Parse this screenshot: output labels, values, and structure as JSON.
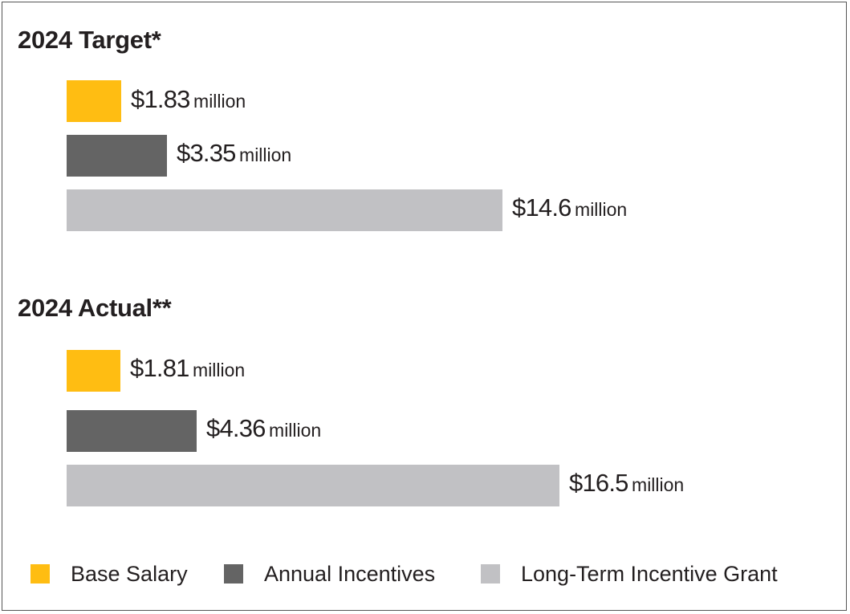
{
  "chart_data": {
    "type": "bar",
    "orientation": "horizontal",
    "unit_label": "million",
    "series_colors": {
      "Base Salary": "#ffbd12",
      "Annual Incentives": "#646464",
      "Long-Term Incentive Grant": "#c1c1c4"
    },
    "groups": [
      {
        "title": "2024 Target*",
        "bars": [
          {
            "series": "Base Salary",
            "value": 1.83,
            "label": "$1.83"
          },
          {
            "series": "Annual Incentives",
            "value": 3.35,
            "label": "$3.35"
          },
          {
            "series": "Long-Term Incentive Grant",
            "value": 14.6,
            "label": "$14.6"
          }
        ]
      },
      {
        "title": "2024 Actual**",
        "bars": [
          {
            "series": "Base Salary",
            "value": 1.81,
            "label": "$1.81"
          },
          {
            "series": "Annual Incentives",
            "value": 4.36,
            "label": "$4.36"
          },
          {
            "series": "Long-Term Incentive Grant",
            "value": 16.5,
            "label": "$16.5"
          }
        ]
      }
    ],
    "legend": [
      {
        "label": "Base Salary",
        "color": "#ffbd12"
      },
      {
        "label": "Annual Incentives",
        "color": "#646464"
      },
      {
        "label": "Long-Term Incentive Grant",
        "color": "#c1c1c4"
      }
    ]
  }
}
